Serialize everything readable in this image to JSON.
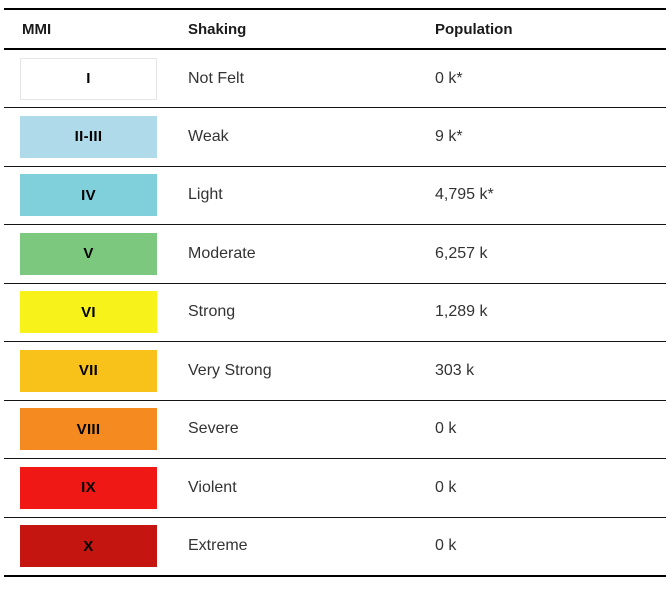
{
  "table": {
    "name": "earthquake-intensity-exposure-table",
    "columns": [
      "MMI",
      "Shaking",
      "Population"
    ],
    "rows": [
      {
        "mmi": "I",
        "shaking": "Not Felt",
        "population": "0 k*",
        "color": "#FFFFFF"
      },
      {
        "mmi": "II-III",
        "shaking": "Weak",
        "population": "9 k*",
        "color": "#AFDAE9"
      },
      {
        "mmi": "IV",
        "shaking": "Light",
        "population": "4,795 k*",
        "color": "#7FD0DB"
      },
      {
        "mmi": "V",
        "shaking": "Moderate",
        "population": "6,257 k",
        "color": "#7DC87F"
      },
      {
        "mmi": "VI",
        "shaking": "Strong",
        "population": "1,289 k",
        "color": "#F7F31A"
      },
      {
        "mmi": "VII",
        "shaking": "Very Strong",
        "population": "303 k",
        "color": "#F9C21B"
      },
      {
        "mmi": "VIII",
        "shaking": "Severe",
        "population": "0 k",
        "color": "#F58A20"
      },
      {
        "mmi": "IX",
        "shaking": "Violent",
        "population": "0 k",
        "color": "#EF1815"
      },
      {
        "mmi": "X",
        "shaking": "Extreme",
        "population": "0 k",
        "color": "#C41511"
      }
    ],
    "style": {
      "rule_color": "#000000",
      "body_text_color": "#333333",
      "swatch_outline_color": "#E6E6E6"
    }
  }
}
